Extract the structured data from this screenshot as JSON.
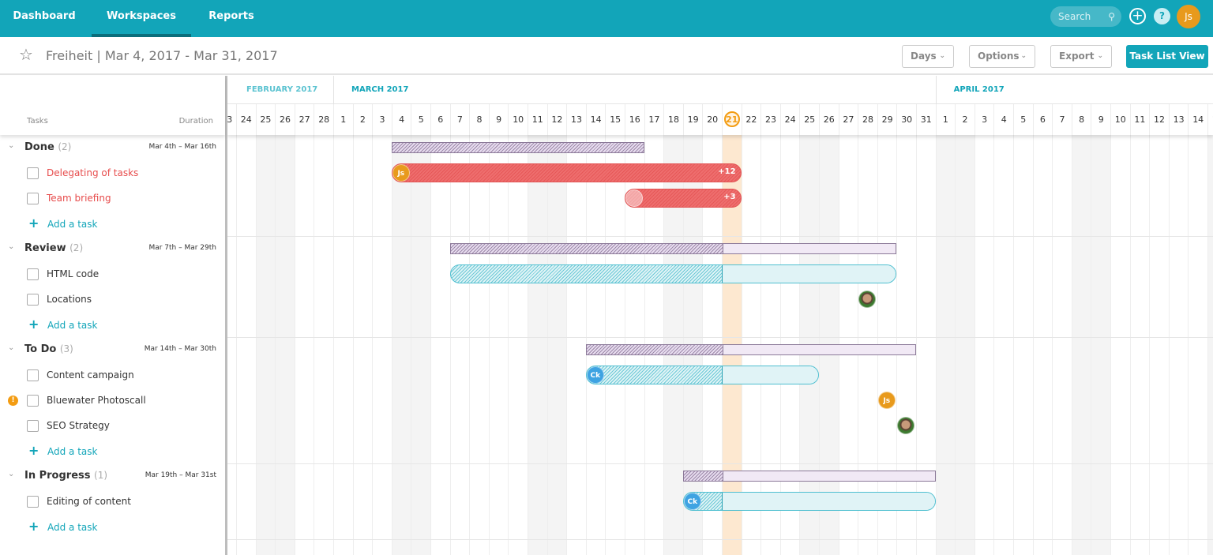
{
  "nav": {
    "items": [
      {
        "label": "Dashboard",
        "active": false
      },
      {
        "label": "Workspaces",
        "active": true
      },
      {
        "label": "Reports",
        "active": false
      }
    ],
    "search_placeholder": "Search",
    "search_icon": "search-icon",
    "add_icon": "plus-circle-icon",
    "help_icon": "question-icon",
    "help_label": "?",
    "user_initials": "Js"
  },
  "project": {
    "name": "Freiheit",
    "separator": "|",
    "range": "Mar 4, 2017 - Mar 31, 2017"
  },
  "toolbar": {
    "days": "Days",
    "options": "Options",
    "export": "Export",
    "task_list_view": "Task List View"
  },
  "columns": {
    "tasks": "Tasks",
    "duration": "Duration"
  },
  "timeline": {
    "start": "2017-02-23",
    "end": "2017-04-15",
    "today": "2017-03-21",
    "months": [
      {
        "label": "FEBRUARY 2017",
        "start": "2017-02-01"
      },
      {
        "label": "MARCH 2017",
        "start": "2017-03-01"
      },
      {
        "label": "APRIL 2017",
        "start": "2017-04-01"
      }
    ]
  },
  "colors": {
    "accent": "#12a5b9",
    "overdue": "#e74c4c",
    "avatar_js": "#e89a1c",
    "avatar_ck": "#3ea3e2",
    "today": "#fde8d0"
  },
  "groups": [
    {
      "name": "Done",
      "count": "(2)",
      "duration": "Mar 4th – Mar 16th",
      "start": "2017-03-04",
      "end": "2017-03-16",
      "tasks": [
        {
          "name": "Delegating of tasks",
          "overdue": true,
          "bar": {
            "color": "red",
            "start": "2017-03-04",
            "end": "2017-03-21",
            "avatar": "Js",
            "extra": "+12"
          }
        },
        {
          "name": "Team briefing",
          "overdue": true,
          "bar": {
            "color": "red",
            "start": "2017-03-16",
            "end": "2017-03-21",
            "avatar": "",
            "extra": "+3"
          }
        }
      ],
      "add_label": "Add a task"
    },
    {
      "name": "Review",
      "count": "(2)",
      "duration": "Mar 7th – Mar 29th",
      "start": "2017-03-07",
      "end": "2017-03-29",
      "tasks": [
        {
          "name": "HTML code",
          "bar": {
            "color": "teal",
            "start": "2017-03-07",
            "end": "2017-03-29"
          }
        },
        {
          "name": "Locations",
          "marker": {
            "date": "2017-03-28",
            "avatar": "photo"
          }
        }
      ],
      "add_label": "Add a task"
    },
    {
      "name": "To Do",
      "count": "(3)",
      "duration": "Mar 14th – Mar 30th",
      "start": "2017-03-14",
      "end": "2017-03-30",
      "tasks": [
        {
          "name": "Content campaign",
          "bar": {
            "color": "teal",
            "start": "2017-03-14",
            "end": "2017-03-25",
            "avatar": "Ck"
          }
        },
        {
          "name": "Bluewater Photoscall",
          "warning": "!",
          "marker": {
            "date": "2017-03-29",
            "avatar": "Js"
          }
        },
        {
          "name": "SEO Strategy",
          "marker": {
            "date": "2017-03-30",
            "avatar": "photo"
          }
        }
      ],
      "add_label": "Add a task"
    },
    {
      "name": "In Progress",
      "count": "(1)",
      "duration": "Mar 19th – Mar 31st",
      "start": "2017-03-19",
      "end": "2017-03-31",
      "tasks": [
        {
          "name": "Editing of content",
          "bar": {
            "color": "teal",
            "start": "2017-03-19",
            "end": "2017-03-31",
            "avatar": "Ck"
          }
        }
      ],
      "add_label": "Add a task"
    }
  ]
}
